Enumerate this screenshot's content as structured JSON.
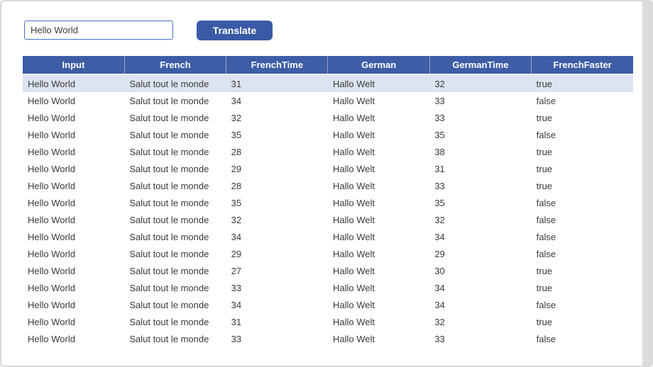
{
  "translator": {
    "input_value": "Hello World",
    "button_label": "Translate"
  },
  "table": {
    "headers": [
      "Input",
      "French",
      "FrenchTime",
      "German",
      "GermanTime",
      "FrenchFaster"
    ],
    "rows": [
      {
        "input": "Hello World",
        "french": "Salut tout le monde",
        "frenchTime": "31",
        "german": "Hallo Welt",
        "germanTime": "32",
        "frenchFaster": "true"
      },
      {
        "input": "Hello World",
        "french": "Salut tout le monde",
        "frenchTime": "34",
        "german": "Hallo Welt",
        "germanTime": "33",
        "frenchFaster": "false"
      },
      {
        "input": "Hello World",
        "french": "Salut tout le monde",
        "frenchTime": "32",
        "german": "Hallo Welt",
        "germanTime": "33",
        "frenchFaster": "true"
      },
      {
        "input": "Hello World",
        "french": "Salut tout le monde",
        "frenchTime": "35",
        "german": "Hallo Welt",
        "germanTime": "35",
        "frenchFaster": "false"
      },
      {
        "input": "Hello World",
        "french": "Salut tout le monde",
        "frenchTime": "28",
        "german": "Hallo Welt",
        "germanTime": "38",
        "frenchFaster": "true"
      },
      {
        "input": "Hello World",
        "french": "Salut tout le monde",
        "frenchTime": "29",
        "german": "Hallo Welt",
        "germanTime": "31",
        "frenchFaster": "true"
      },
      {
        "input": "Hello World",
        "french": "Salut tout le monde",
        "frenchTime": "28",
        "german": "Hallo Welt",
        "germanTime": "33",
        "frenchFaster": "true"
      },
      {
        "input": "Hello World",
        "french": "Salut tout le monde",
        "frenchTime": "35",
        "german": "Hallo Welt",
        "germanTime": "35",
        "frenchFaster": "false"
      },
      {
        "input": "Hello World",
        "french": "Salut tout le monde",
        "frenchTime": "32",
        "german": "Hallo Welt",
        "germanTime": "32",
        "frenchFaster": "false"
      },
      {
        "input": "Hello World",
        "french": "Salut tout le monde",
        "frenchTime": "34",
        "german": "Hallo Welt",
        "germanTime": "34",
        "frenchFaster": "false"
      },
      {
        "input": "Hello World",
        "french": "Salut tout le monde",
        "frenchTime": "29",
        "german": "Hallo Welt",
        "germanTime": "29",
        "frenchFaster": "false"
      },
      {
        "input": "Hello World",
        "french": "Salut tout le monde",
        "frenchTime": "27",
        "german": "Hallo Welt",
        "germanTime": "30",
        "frenchFaster": "true"
      },
      {
        "input": "Hello World",
        "french": "Salut tout le monde",
        "frenchTime": "33",
        "german": "Hallo Welt",
        "germanTime": "34",
        "frenchFaster": "true"
      },
      {
        "input": "Hello World",
        "french": "Salut tout le monde",
        "frenchTime": "34",
        "german": "Hallo Welt",
        "germanTime": "34",
        "frenchFaster": "false"
      },
      {
        "input": "Hello World",
        "french": "Salut tout le monde",
        "frenchTime": "31",
        "german": "Hallo Welt",
        "germanTime": "32",
        "frenchFaster": "true"
      },
      {
        "input": "Hello World",
        "french": "Salut tout le monde",
        "frenchTime": "33",
        "german": "Hallo Welt",
        "germanTime": "33",
        "frenchFaster": "false"
      }
    ]
  },
  "colors": {
    "accent_blue": "#3d5da7",
    "button_blue": "#3b5aa6",
    "input_border_blue": "#4472c4",
    "row_highlight": "#dce3f1",
    "window_border": "#dadada",
    "scrollbar_track": "#dcdcdc",
    "text": "#3a3a3a"
  }
}
